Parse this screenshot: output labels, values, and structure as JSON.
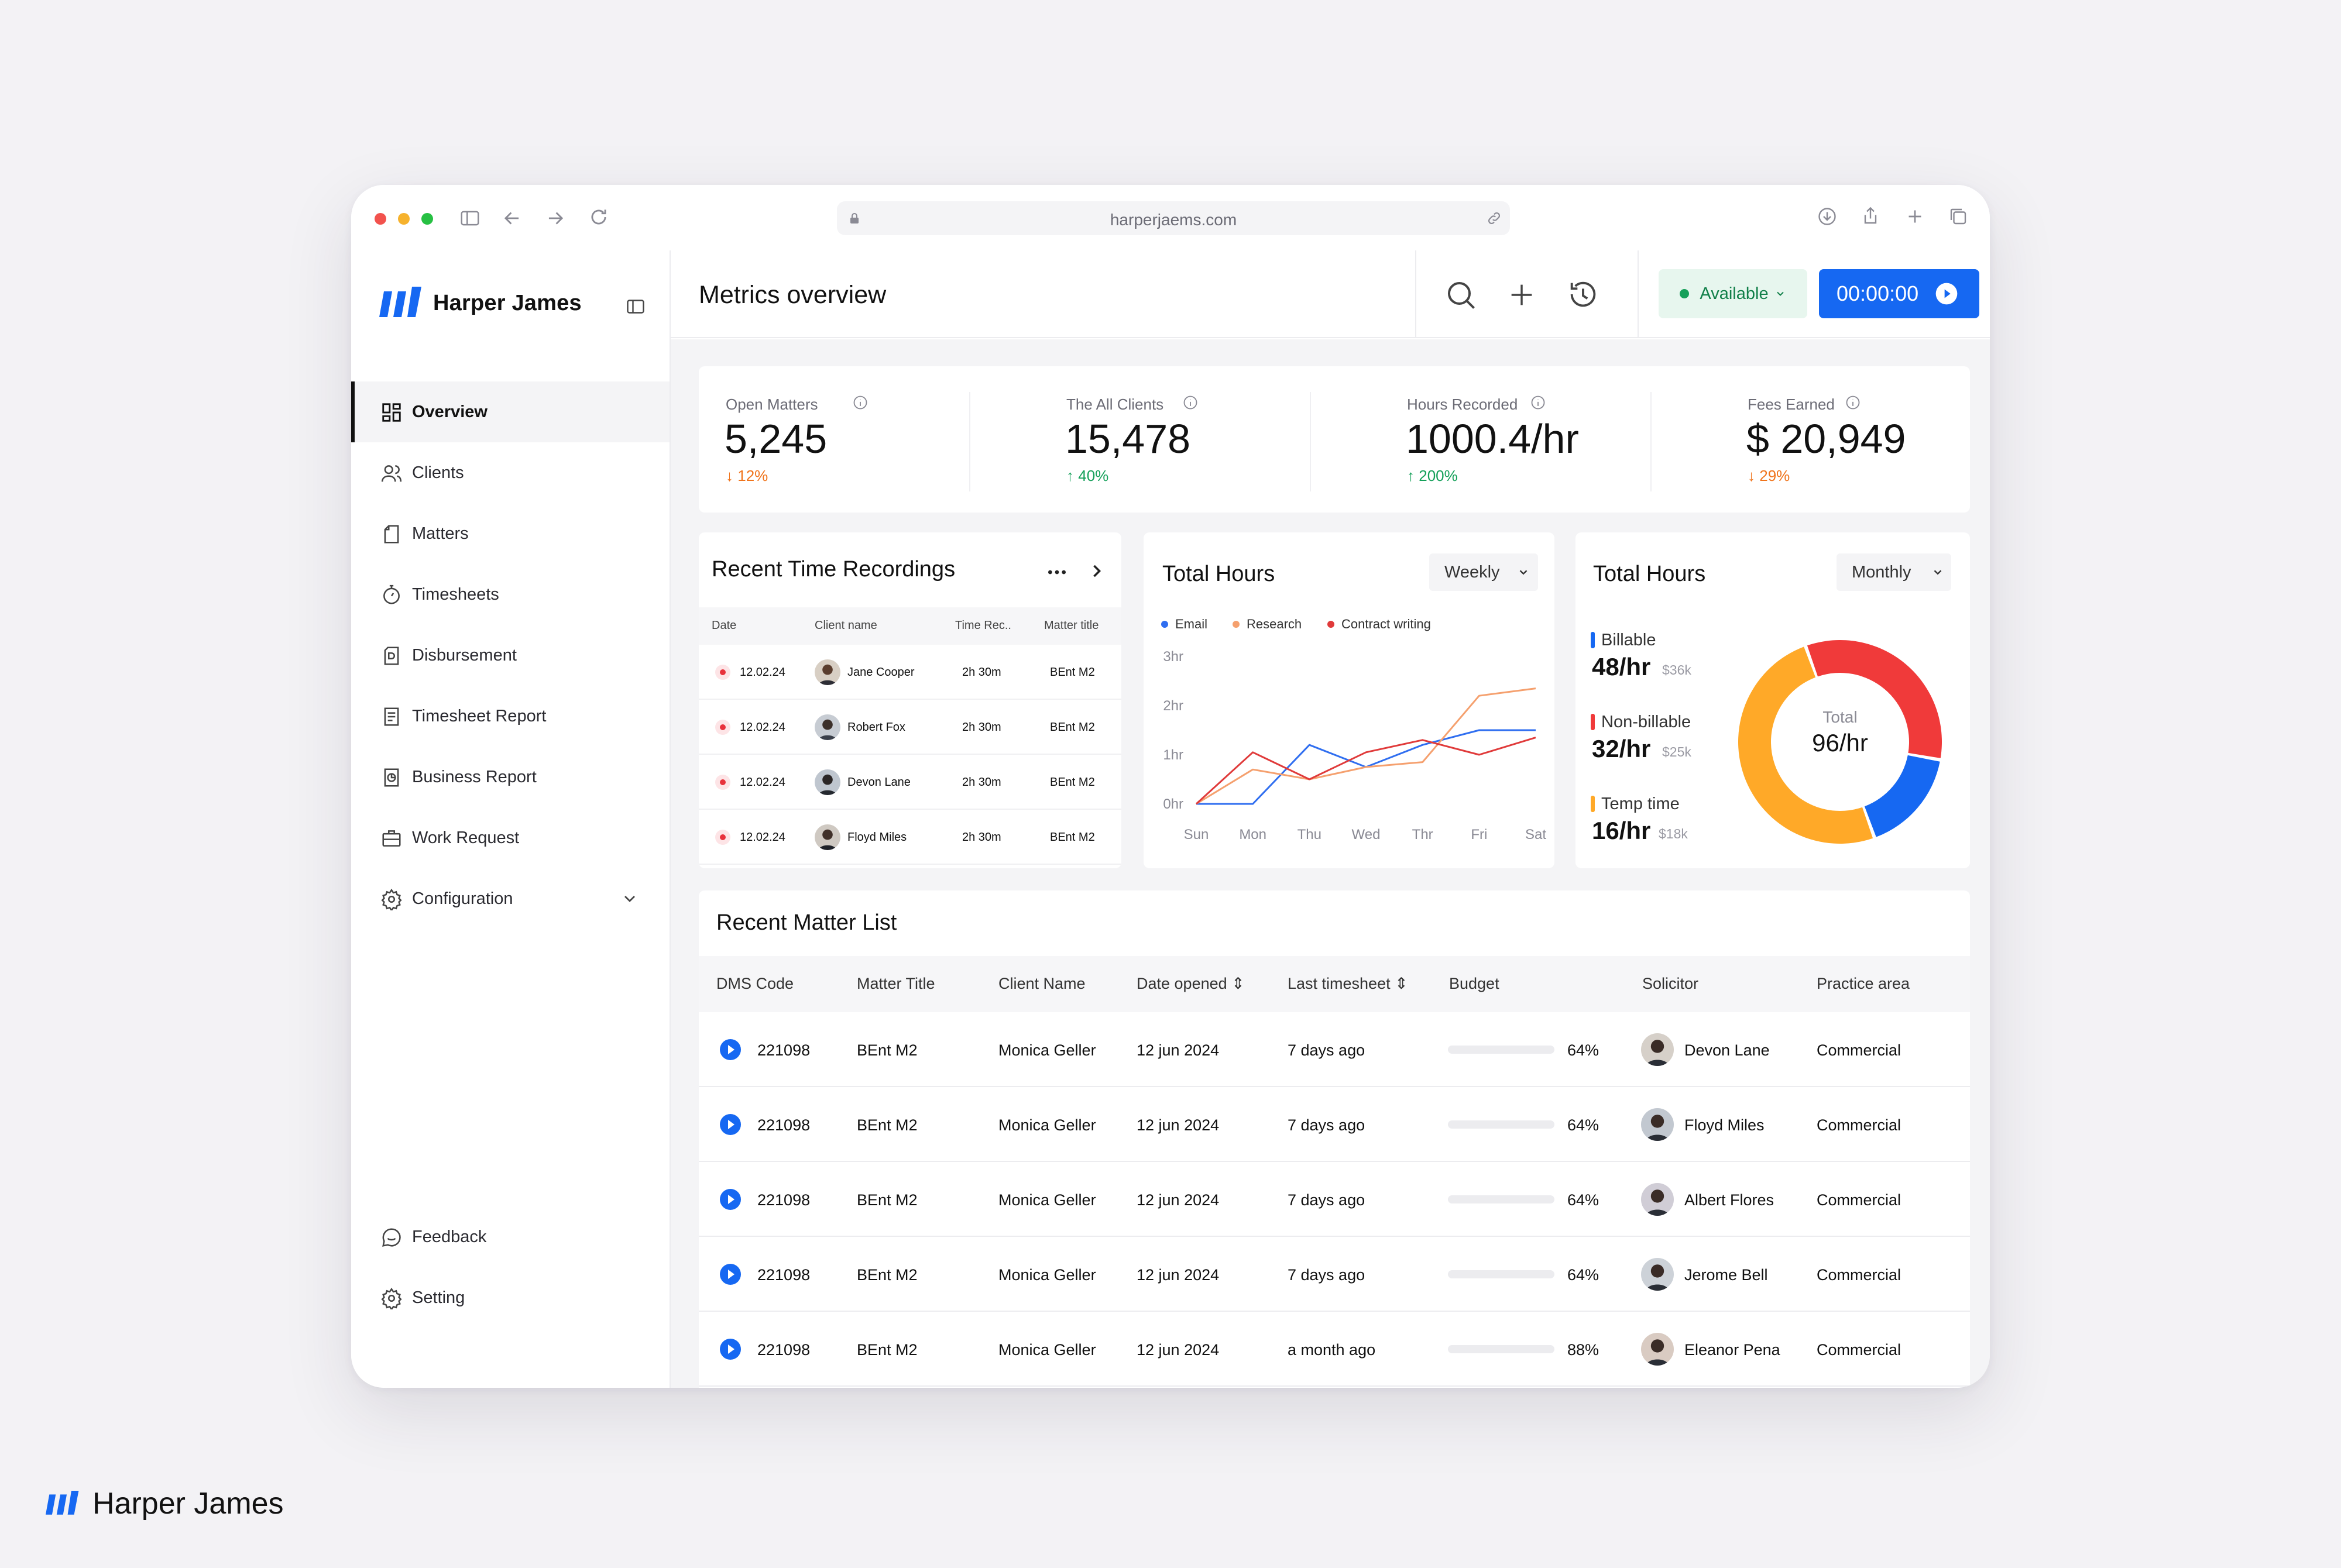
{
  "browser": {
    "url": "harperjaems.com"
  },
  "brand": {
    "name": "Harper James",
    "color": "#1668f2"
  },
  "sidebar": {
    "items": [
      {
        "label": "Overview",
        "icon": "grid-icon"
      },
      {
        "label": "Clients",
        "icon": "users-icon"
      },
      {
        "label": "Matters",
        "icon": "file-icon"
      },
      {
        "label": "Timesheets",
        "icon": "stopwatch-icon"
      },
      {
        "label": "Disbursement",
        "icon": "document-d-icon"
      },
      {
        "label": "Timesheet Report",
        "icon": "report-icon"
      },
      {
        "label": "Business Report",
        "icon": "chart-file-icon"
      },
      {
        "label": "Work Request",
        "icon": "briefcase-icon"
      },
      {
        "label": "Configuration",
        "icon": "gear-icon"
      }
    ],
    "bottom": [
      {
        "label": "Feedback",
        "icon": "chat-icon"
      },
      {
        "label": "Setting",
        "icon": "gear-icon"
      }
    ]
  },
  "header": {
    "title": "Metrics overview",
    "status": "Available",
    "timer": "00:00:00"
  },
  "kpis": [
    {
      "label": "Open Matters",
      "value": "5,245",
      "delta": "12%",
      "direction": "down"
    },
    {
      "label": "The All Clients",
      "value": "15,478",
      "delta": "40%",
      "direction": "up"
    },
    {
      "label": "Hours Recorded",
      "value": "1000.4/hr",
      "delta": "200%",
      "direction": "up"
    },
    {
      "label": "Fees Earned",
      "value": "$ 20,949",
      "delta": "29%",
      "direction": "down"
    }
  ],
  "recent_time": {
    "title": "Recent Time Recordings",
    "columns": [
      "Date",
      "Client name",
      "Time Rec..",
      "Matter title"
    ],
    "rows": [
      {
        "date": "12.02.24",
        "client": "Jane Cooper",
        "time": "2h 30m",
        "matter": "BEnt M2"
      },
      {
        "date": "12.02.24",
        "client": "Robert Fox",
        "time": "2h 30m",
        "matter": "BEnt M2"
      },
      {
        "date": "12.02.24",
        "client": "Devon Lane",
        "time": "2h 30m",
        "matter": "BEnt M2"
      },
      {
        "date": "12.02.24",
        "client": "Floyd Miles",
        "time": "2h 30m",
        "matter": "BEnt M2"
      }
    ]
  },
  "chart_data": [
    {
      "type": "line",
      "title": "Total Hours",
      "period": "Weekly",
      "x": [
        "Sun",
        "Mon",
        "Thu",
        "Wed",
        "Thr",
        "Fri",
        "Sat"
      ],
      "y_ticks": [
        "0hr",
        "1hr",
        "2hr",
        "3hr"
      ],
      "ylim": [
        0,
        3
      ],
      "series": [
        {
          "name": "Email",
          "color": "#2f6ef0",
          "values": [
            0,
            0,
            1.2,
            0.75,
            1.2,
            1.5,
            1.5
          ]
        },
        {
          "name": "Research",
          "color": "#f5a06e",
          "values": [
            0,
            0.7,
            0.5,
            0.75,
            0.85,
            2.2,
            2.35
          ]
        },
        {
          "name": "Contract writing",
          "color": "#e03a3a",
          "values": [
            0,
            1.05,
            0.5,
            1.05,
            1.3,
            1.0,
            1.35
          ]
        }
      ],
      "legend": "top-left"
    },
    {
      "type": "pie",
      "title": "Total Hours",
      "period": "Monthly",
      "center_label": "Total",
      "center_value": "96/hr",
      "slices": [
        {
          "name": "Billable",
          "value": 48,
          "display": "48/hr",
          "amount": "$36k",
          "color": "#ffa928"
        },
        {
          "name": "Non-billable",
          "value": 32,
          "display": "32/hr",
          "amount": "$25k",
          "color": "#f03a3a"
        },
        {
          "name": "Temp time",
          "value": 16,
          "display": "16/hr",
          "amount": "$18k",
          "color": "#1668f2"
        }
      ]
    }
  ],
  "matters": {
    "title": "Recent Matter List",
    "columns": [
      "DMS Code",
      "Matter Title",
      "Client Name",
      "Date opened",
      "Last timesheet",
      "Budget",
      "Solicitor",
      "Practice area"
    ],
    "rows": [
      {
        "code": "221098",
        "title": "BEnt M2",
        "client": "Monica Geller",
        "opened": "12 jun 2024",
        "last": "7 days ago",
        "budget": 64,
        "budget_label": "64%",
        "budget_color": "#129456",
        "solicitor": "Devon Lane",
        "area": "Commercial"
      },
      {
        "code": "221098",
        "title": "BEnt M2",
        "client": "Monica Geller",
        "opened": "12 jun 2024",
        "last": "7 days ago",
        "budget": 64,
        "budget_label": "64%",
        "budget_color": "#129456",
        "solicitor": "Floyd Miles",
        "area": "Commercial"
      },
      {
        "code": "221098",
        "title": "BEnt M2",
        "client": "Monica Geller",
        "opened": "12 jun 2024",
        "last": "7 days ago",
        "budget": 64,
        "budget_label": "64%",
        "budget_color": "#129456",
        "solicitor": "Albert Flores",
        "area": "Commercial"
      },
      {
        "code": "221098",
        "title": "BEnt M2",
        "client": "Monica Geller",
        "opened": "12 jun 2024",
        "last": "7 days ago",
        "budget": 64,
        "budget_label": "64%",
        "budget_color": "#129456",
        "solicitor": "Jerome Bell",
        "area": "Commercial"
      },
      {
        "code": "221098",
        "title": "BEnt M2",
        "client": "Monica Geller",
        "opened": "12 jun 2024",
        "last": "a month ago",
        "budget": 88,
        "budget_label": "88%",
        "budget_color": "#e03a3a",
        "solicitor": "Eleanor Pena",
        "area": "Commercial"
      }
    ]
  },
  "footer": {
    "brand": "Harper James"
  }
}
